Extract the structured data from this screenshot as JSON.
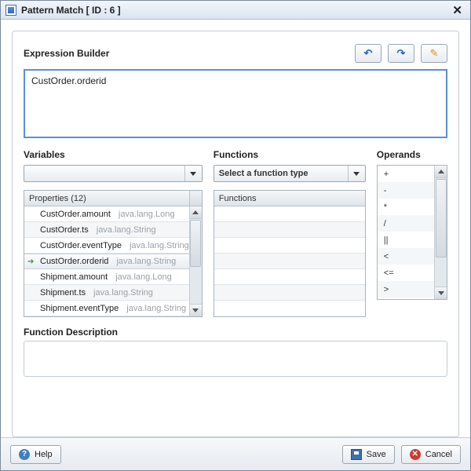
{
  "window": {
    "title": "Pattern Match [ ID : 6 ]"
  },
  "labels": {
    "expression_builder": "Expression Builder",
    "variables": "Variables",
    "functions": "Functions",
    "operands": "Operands",
    "function_description": "Function Description"
  },
  "expression": {
    "text": "CustOrder.orderid"
  },
  "variables": {
    "header": "Properties (12)",
    "combo_value": "",
    "items": [
      {
        "name": "CustOrder.amount",
        "type": "java.lang.Long",
        "selected": false
      },
      {
        "name": "CustOrder.ts",
        "type": "java.lang.String",
        "selected": false
      },
      {
        "name": "CustOrder.eventType",
        "type": "java.lang.String",
        "selected": false
      },
      {
        "name": "CustOrder.orderid",
        "type": "java.lang.String",
        "selected": true
      },
      {
        "name": "Shipment.amount",
        "type": "java.lang.Long",
        "selected": false
      },
      {
        "name": "Shipment.ts",
        "type": "java.lang.String",
        "selected": false
      },
      {
        "name": "Shipment.eventType",
        "type": "java.lang.String",
        "selected": false
      }
    ]
  },
  "functions": {
    "combo_value": "Select a function type",
    "header": "Functions",
    "items": [
      "",
      "",
      "",
      "",
      "",
      ""
    ]
  },
  "operands": {
    "items": [
      "+",
      "-",
      "*",
      "/",
      "||",
      "<",
      "<=",
      ">"
    ]
  },
  "buttons": {
    "help": "Help",
    "save": "Save",
    "cancel": "Cancel"
  },
  "colors": {
    "accent_border": "#5a8fd6",
    "panel_border": "#c4cdd6"
  }
}
